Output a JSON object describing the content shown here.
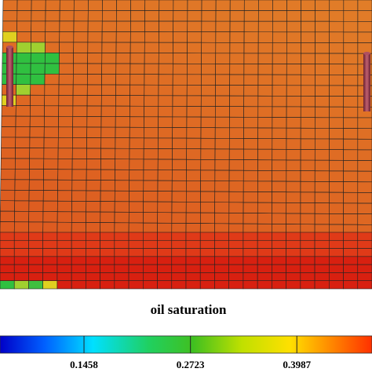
{
  "title": "oil saturation",
  "colorbar": {
    "lim": [
      0.046,
      0.488
    ],
    "ticks": [
      0.1458,
      0.2723,
      0.3987
    ]
  }
}
